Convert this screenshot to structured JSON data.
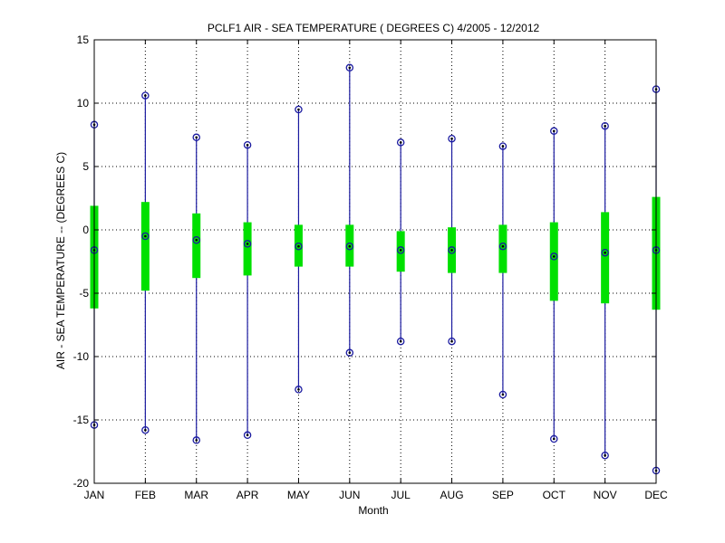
{
  "chart_data": {
    "type": "box",
    "title": "PCLF1  AIR - SEA TEMPERATURE ( DEGREES C) 4/2005 - 12/2012",
    "xlabel": "Month",
    "ylabel": "AIR - SEA TEMPERATURE -- (DEGREES C)",
    "ylim": [
      -20,
      15
    ],
    "yticks": [
      -20,
      -15,
      -10,
      -5,
      0,
      5,
      10,
      15
    ],
    "grid": true,
    "categories": [
      "JAN",
      "FEB",
      "MAR",
      "APR",
      "MAY",
      "JUN",
      "JUL",
      "AUG",
      "SEP",
      "OCT",
      "NOV",
      "DEC"
    ],
    "max": [
      8.3,
      10.6,
      7.3,
      6.7,
      9.5,
      12.8,
      6.9,
      7.2,
      6.6,
      7.8,
      8.2,
      11.1
    ],
    "q3": [
      1.9,
      2.2,
      1.3,
      0.6,
      0.4,
      0.4,
      -0.1,
      0.2,
      0.4,
      0.6,
      1.4,
      2.6
    ],
    "median": [
      -1.6,
      -0.5,
      -0.8,
      -1.1,
      -1.3,
      -1.3,
      -1.6,
      -1.6,
      -1.3,
      -2.1,
      -1.8,
      -1.6
    ],
    "q1": [
      -6.2,
      -4.8,
      -3.8,
      -3.6,
      -2.9,
      -2.9,
      -3.3,
      -3.4,
      -3.4,
      -5.6,
      -5.8,
      -6.3
    ],
    "min": [
      -15.4,
      -15.8,
      -16.6,
      -16.2,
      -12.6,
      -9.7,
      -8.8,
      -8.8,
      -13.0,
      -16.5,
      -17.8,
      -19.0
    ],
    "colors": {
      "whisker": "#1a1aa0",
      "box": "#00e000",
      "marker": "#000000",
      "grid": "#000000"
    }
  }
}
